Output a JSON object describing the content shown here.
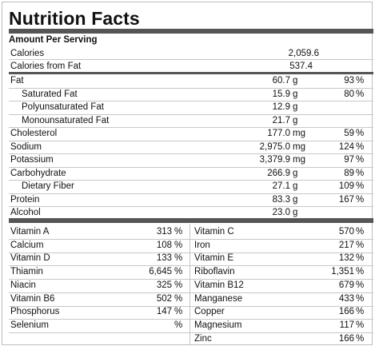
{
  "title": "Nutrition Facts",
  "amount_per_serving": "Amount Per Serving",
  "calories": {
    "label": "Calories",
    "value": "2,059.6"
  },
  "calories_from_fat": {
    "label": "Calories from Fat",
    "value": "537.4"
  },
  "nutrients": [
    {
      "label": "Fat",
      "amount": "60.7",
      "unit": "g",
      "dv": "93",
      "pct": "%"
    },
    {
      "label": "Saturated Fat",
      "amount": "15.9",
      "unit": "g",
      "dv": "80",
      "pct": "%"
    },
    {
      "label": "Polyunsaturated Fat",
      "amount": "12.9",
      "unit": "g",
      "dv": "",
      "pct": ""
    },
    {
      "label": "Monounsaturated Fat",
      "amount": "21.7",
      "unit": "g",
      "dv": "",
      "pct": ""
    },
    {
      "label": "Cholesterol",
      "amount": "177.0",
      "unit": "mg",
      "dv": "59",
      "pct": "%"
    },
    {
      "label": "Sodium",
      "amount": "2,975.0",
      "unit": "mg",
      "dv": "124",
      "pct": "%"
    },
    {
      "label": "Potassium",
      "amount": "3,379.9",
      "unit": "mg",
      "dv": "97",
      "pct": "%"
    },
    {
      "label": "Carbohydrate",
      "amount": "266.9",
      "unit": "g",
      "dv": "89",
      "pct": "%"
    },
    {
      "label": "Dietary Fiber",
      "amount": "27.1",
      "unit": "g",
      "dv": "109",
      "pct": "%"
    },
    {
      "label": "Protein",
      "amount": "83.3",
      "unit": "g",
      "dv": "167",
      "pct": "%"
    },
    {
      "label": "Alcohol",
      "amount": "23.0",
      "unit": "g",
      "dv": "",
      "pct": ""
    }
  ],
  "vitamins_left": [
    {
      "label": "Vitamin A",
      "value": "313",
      "pct": "%"
    },
    {
      "label": "Calcium",
      "value": "108",
      "pct": "%"
    },
    {
      "label": "Vitamin D",
      "value": "133",
      "pct": "%"
    },
    {
      "label": "Thiamin",
      "value": "6,645",
      "pct": "%"
    },
    {
      "label": "Niacin",
      "value": "325",
      "pct": "%"
    },
    {
      "label": "Vitamin B6",
      "value": "502",
      "pct": "%"
    },
    {
      "label": "Phosphorus",
      "value": "147",
      "pct": "%"
    },
    {
      "label": "Selenium",
      "value": "",
      "pct": "%"
    }
  ],
  "vitamins_right": [
    {
      "label": "Vitamin C",
      "value": "570",
      "pct": "%"
    },
    {
      "label": "Iron",
      "value": "217",
      "pct": "%"
    },
    {
      "label": "Vitamin E",
      "value": "132",
      "pct": "%"
    },
    {
      "label": "Riboflavin",
      "value": "1,351",
      "pct": "%"
    },
    {
      "label": "Vitamin B12",
      "value": "679",
      "pct": "%"
    },
    {
      "label": "Manganese",
      "value": "433",
      "pct": "%"
    },
    {
      "label": "Copper",
      "value": "166",
      "pct": "%"
    },
    {
      "label": "Magnesium",
      "value": "117",
      "pct": "%"
    },
    {
      "label": "Zinc",
      "value": "166",
      "pct": "%"
    }
  ]
}
